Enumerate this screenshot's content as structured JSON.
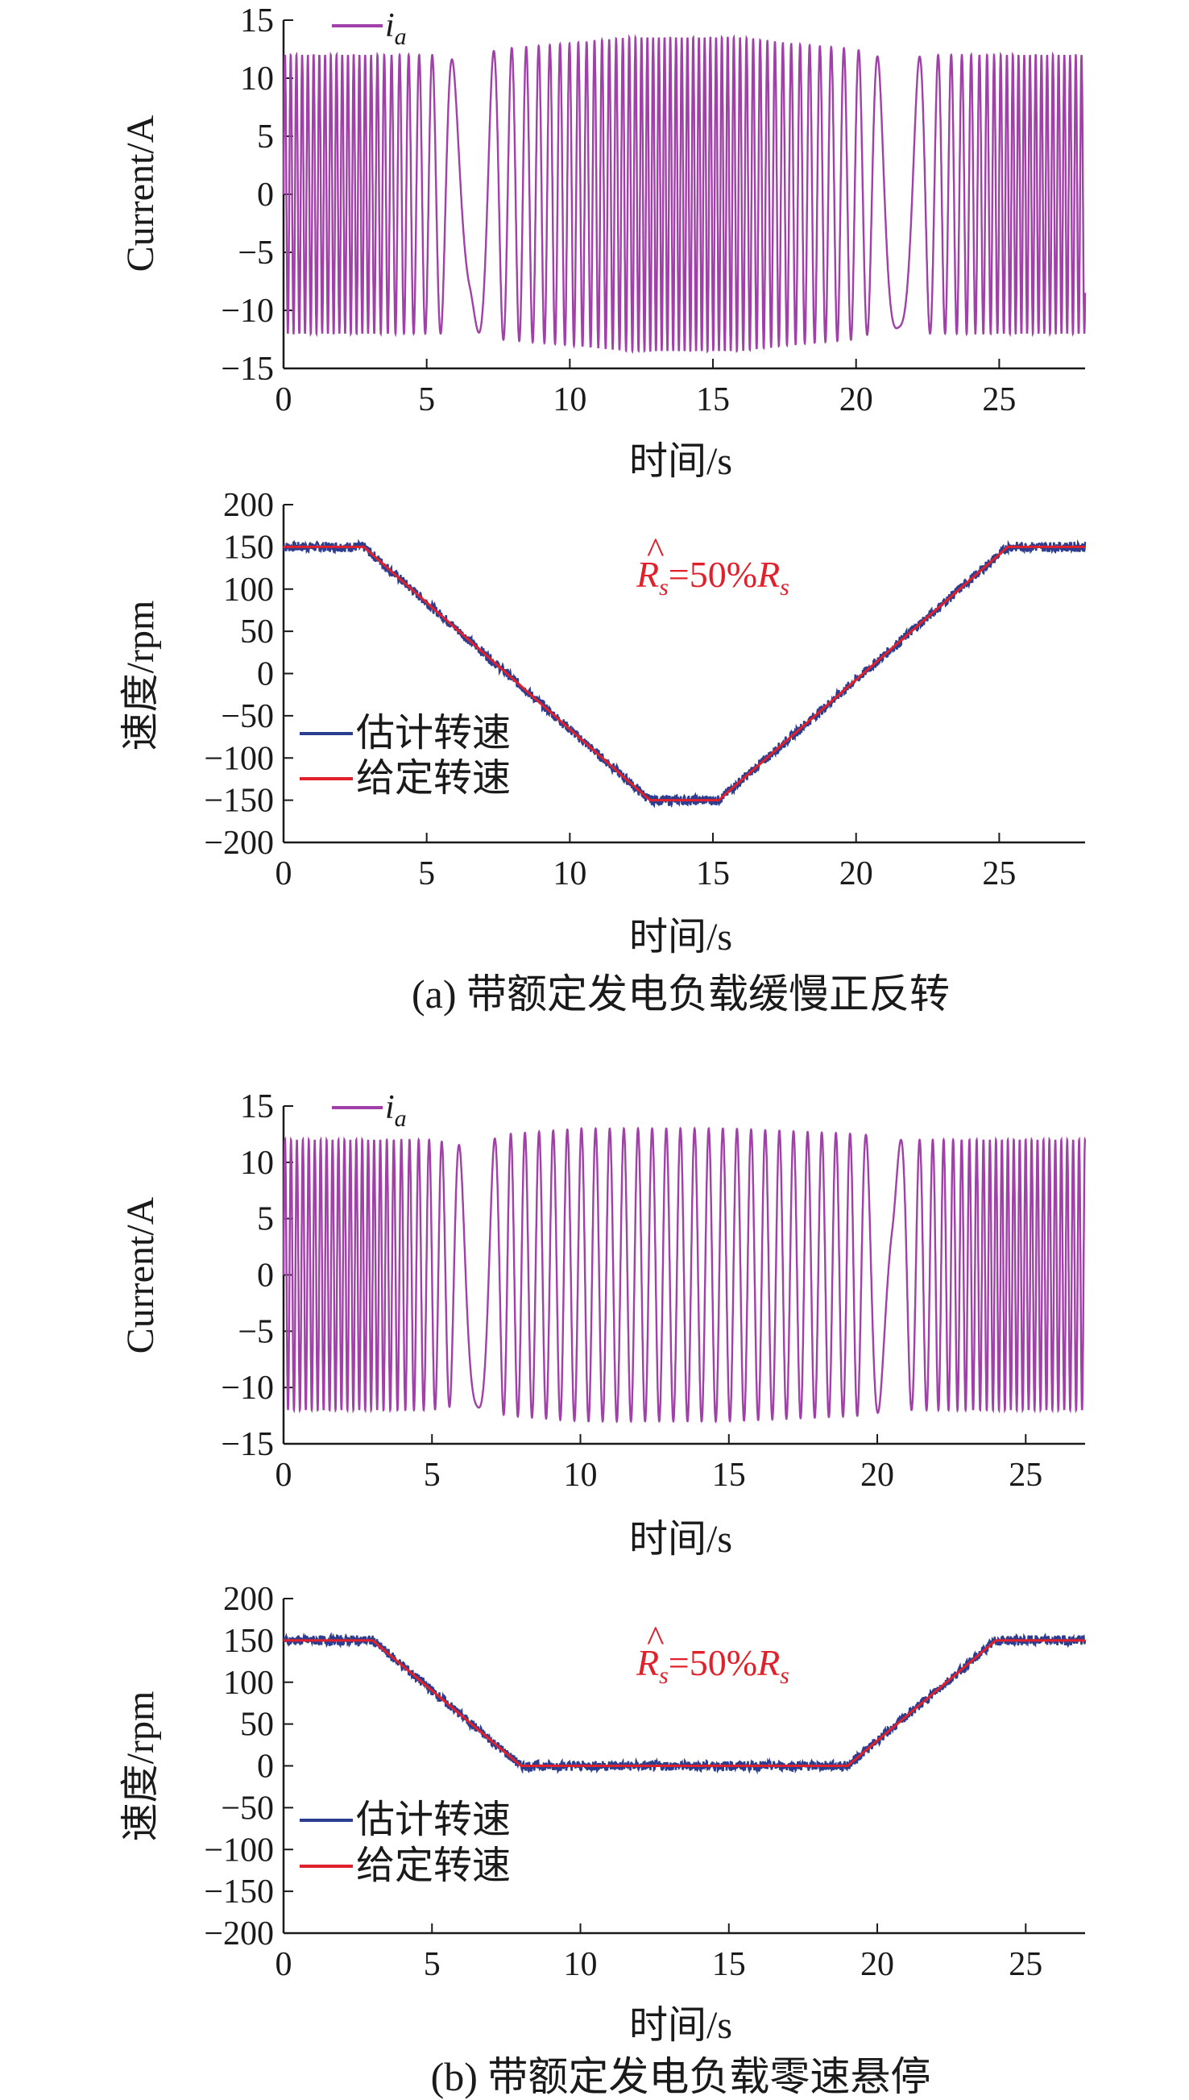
{
  "colors": {
    "current": "#a040a8",
    "estimated": "#2c3e8f",
    "reference": "#e0202a",
    "axis": "#1a1a1a"
  },
  "labels": {
    "current_ylabel": "Current/A",
    "speed_ylabel": "速度/rpm",
    "xlabel": "时间/s",
    "current_legend": "i",
    "current_legend_sub": "a",
    "legend_est": "估计转速",
    "legend_ref": "给定转速",
    "ann_R": "R",
    "ann_s": "s",
    "ann_eq": "=50%",
    "ann_R2": "R",
    "ann_s2": "s",
    "caption_a": "(a) 带额定发电负载缓慢正反转",
    "caption_b": "(b) 带额定发电负载零速悬停"
  },
  "chart_data": [
    {
      "id": "a_current",
      "type": "line",
      "xlabel": "时间/s",
      "ylabel": "Current/A",
      "xlim": [
        0,
        28
      ],
      "ylim": [
        -15,
        15
      ],
      "xticks": [
        0,
        5,
        10,
        15,
        20,
        25
      ],
      "yticks": [
        15,
        10,
        5,
        0,
        -5,
        -10,
        -15
      ],
      "series": [
        {
          "name": "i_a",
          "envelope": {
            "x": [
              0,
              5,
              5.5,
              6,
              7,
              7.5,
              10,
              12,
              14,
              16,
              17.5,
              20,
              20.5,
              21.5,
              22.5,
              23,
              28
            ],
            "amp": [
              12,
              12,
              12,
              11.5,
              12,
              12.5,
              13,
              13.5,
              13.5,
              13.5,
              13,
              12.5,
              12,
              11.5,
              12,
              12,
              12
            ]
          },
          "frequency_hz": {
            "x": [
              0,
              2.8,
              5.5,
              6.5,
              7.5,
              12.8,
              15.2,
              20.5,
              21.5,
              22.5,
              25.5,
              28
            ],
            "hz": [
              5.0,
              5.0,
              1.5,
              0.2,
              1.5,
              5.0,
              5.0,
              1.5,
              0.2,
              1.5,
              5.0,
              5.0
            ]
          }
        }
      ]
    },
    {
      "id": "a_speed",
      "type": "line",
      "xlabel": "时间/s",
      "ylabel": "速度/rpm",
      "xlim": [
        0,
        28
      ],
      "ylim": [
        -200,
        200
      ],
      "xticks": [
        0,
        5,
        10,
        15,
        20,
        25
      ],
      "yticks": [
        200,
        150,
        100,
        50,
        0,
        -50,
        -100,
        -150,
        -200
      ],
      "annotation": "R̂s=50%Rs",
      "series": [
        {
          "name": "估计转速",
          "x": [
            0,
            2.8,
            12.8,
            15.2,
            25.3,
            28
          ],
          "y": [
            150,
            150,
            -150,
            -150,
            150,
            150
          ],
          "noise": 6
        },
        {
          "name": "给定转速",
          "x": [
            0,
            2.8,
            12.8,
            15.2,
            25.3,
            28
          ],
          "y": [
            150,
            150,
            -150,
            -150,
            150,
            150
          ]
        }
      ]
    },
    {
      "id": "b_current",
      "type": "line",
      "xlabel": "时间/s",
      "ylabel": "Current/A",
      "xlim": [
        0,
        27
      ],
      "ylim": [
        -15,
        15
      ],
      "xticks": [
        0,
        5,
        10,
        15,
        20,
        25
      ],
      "yticks": [
        15,
        10,
        5,
        0,
        -5,
        -10,
        -15
      ],
      "series": [
        {
          "name": "i_a",
          "envelope": {
            "x": [
              0,
              5,
              6,
              7,
              7.5,
              10,
              15,
              19.5,
              20.5,
              21.5,
              27
            ],
            "amp": [
              12,
              12,
              11.5,
              12,
              12.5,
              13,
              13,
              12.5,
              12,
              12,
              12
            ]
          },
          "frequency_hz": {
            "x": [
              0,
              3,
              5.8,
              6.5,
              7.5,
              19.2,
              20.5,
              21.0,
              24,
              27
            ],
            "hz": [
              5.0,
              5.0,
              1.5,
              0.3,
              2.1,
              2.1,
              0.3,
              1.5,
              5.0,
              5.0
            ]
          }
        }
      ]
    },
    {
      "id": "b_speed",
      "type": "line",
      "xlabel": "时间/s",
      "ylabel": "速度/rpm",
      "xlim": [
        0,
        27
      ],
      "ylim": [
        -200,
        200
      ],
      "xticks": [
        0,
        5,
        10,
        15,
        20,
        25
      ],
      "yticks": [
        200,
        150,
        100,
        50,
        0,
        -50,
        -100,
        -150,
        -200
      ],
      "annotation": "R̂s=50%Rs",
      "series": [
        {
          "name": "估计转速",
          "x": [
            0,
            3,
            8,
            19,
            24,
            27
          ],
          "y": [
            150,
            150,
            0,
            0,
            150,
            150
          ],
          "noise": 6
        },
        {
          "name": "给定转速",
          "x": [
            0,
            3,
            8,
            19,
            24,
            27
          ],
          "y": [
            150,
            150,
            0,
            0,
            150,
            150
          ]
        }
      ]
    }
  ]
}
